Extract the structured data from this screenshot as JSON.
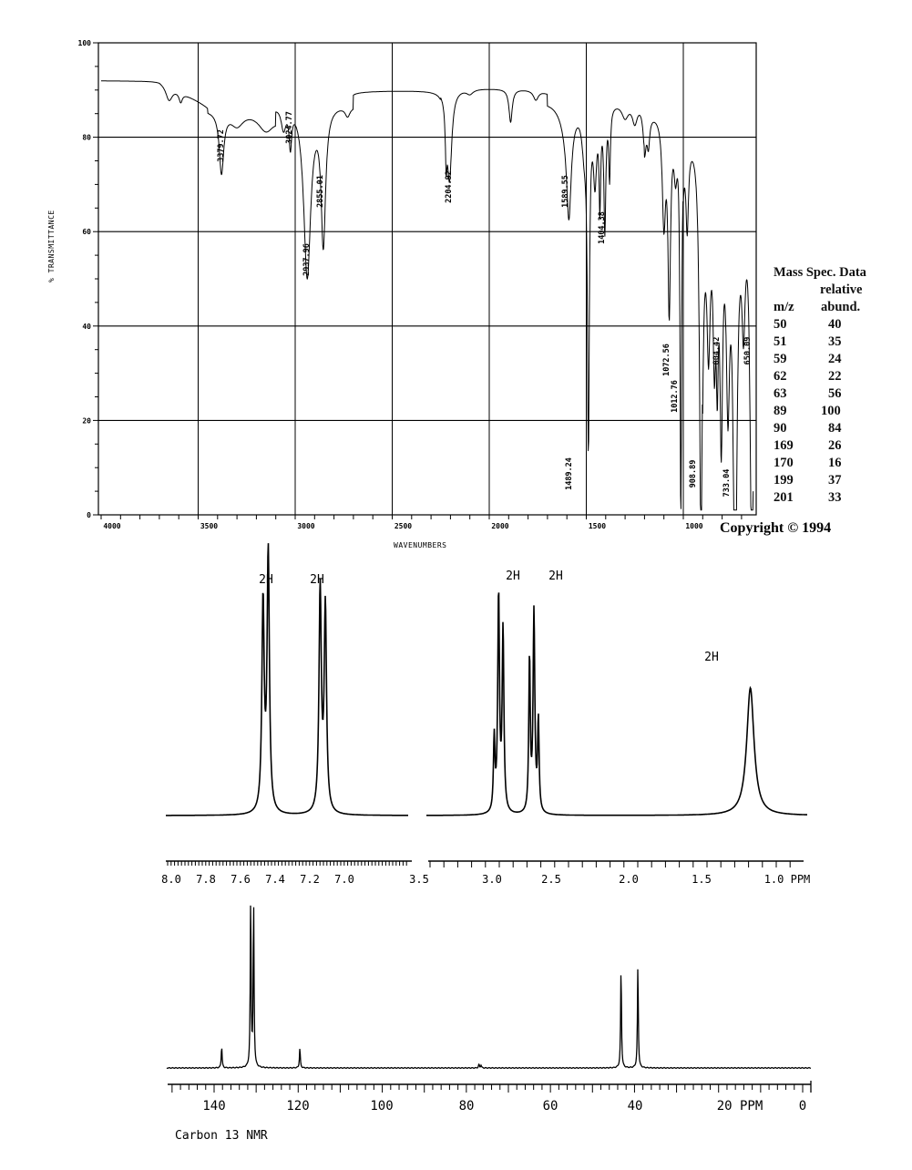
{
  "chart_data": [
    {
      "type": "line",
      "name": "IR spectrum",
      "title": "",
      "xlabel": "WAVENUMBERS",
      "ylabel": "% TRANSMITTANCE",
      "xlim": [
        4000,
        650
      ],
      "ylim": [
        0,
        100
      ],
      "x_ticks": [
        "4000",
        "3500",
        "3000",
        "2500",
        "2000",
        "1500",
        "1000"
      ],
      "y_ticks": [
        "0",
        "20",
        "40",
        "60",
        "80",
        "100"
      ],
      "grid": true,
      "peaks": [
        {
          "wavenumber": 3379.72,
          "transmittance": 78,
          "label": "3379.72"
        },
        {
          "wavenumber": 3024.77,
          "transmittance": 80,
          "label": "3024.77"
        },
        {
          "wavenumber": 2937.96,
          "transmittance": 55,
          "label": "2937.96"
        },
        {
          "wavenumber": 2855.01,
          "transmittance": 63,
          "label": "2855.01"
        },
        {
          "wavenumber": 2204.92,
          "transmittance": 72,
          "label": "2204.92"
        },
        {
          "wavenumber": 1589.55,
          "transmittance": 71,
          "label": "1589.55"
        },
        {
          "wavenumber": 1404.38,
          "transmittance": 62,
          "label": "1404.38"
        },
        {
          "wavenumber": 1489.24,
          "transmittance": 18,
          "label": "1489.24"
        },
        {
          "wavenumber": 1072.56,
          "transmittance": 44,
          "label": "1072.56"
        },
        {
          "wavenumber": 1012.76,
          "transmittance": 40,
          "label": "1012.76"
        },
        {
          "wavenumber": 908.89,
          "transmittance": 3,
          "label": "908.89"
        },
        {
          "wavenumber": 804.42,
          "transmittance": 37,
          "label": "804.42"
        },
        {
          "wavenumber": 733.04,
          "transmittance": 1,
          "label": "733.04"
        },
        {
          "wavenumber": 650.09,
          "transmittance": 40,
          "label": "650.09"
        }
      ]
    },
    {
      "type": "table",
      "name": "Mass Spec. Data",
      "title": "Mass Spec. Data",
      "columns": [
        "m/z",
        "relative abund."
      ],
      "rows": [
        [
          "50",
          "40"
        ],
        [
          "51",
          "35"
        ],
        [
          "59",
          "24"
        ],
        [
          "62",
          "22"
        ],
        [
          "63",
          "56"
        ],
        [
          "89",
          "100"
        ],
        [
          "90",
          "84"
        ],
        [
          "169",
          "26"
        ],
        [
          "170",
          "16"
        ],
        [
          "199",
          "37"
        ],
        [
          "201",
          "33"
        ]
      ]
    },
    {
      "type": "line",
      "name": "1H NMR spectrum",
      "xlabel": "PPM",
      "x_ticks_left": [
        "8.0",
        "7.8",
        "7.6",
        "7.4",
        "7.2",
        "7.0"
      ],
      "x_ticks_right": [
        "3.5",
        "3.0",
        "2.5",
        "2.0",
        "1.5",
        "1.0 PPM"
      ],
      "signals": [
        {
          "ppm": 7.45,
          "multiplicity": "doublet",
          "integration": "2H"
        },
        {
          "ppm": 7.12,
          "multiplicity": "doublet",
          "integration": "2H"
        },
        {
          "ppm": 2.95,
          "multiplicity": "triplet",
          "integration": "2H"
        },
        {
          "ppm": 2.72,
          "multiplicity": "triplet",
          "integration": "2H"
        },
        {
          "ppm": 1.25,
          "multiplicity": "broad singlet",
          "integration": "2H"
        }
      ]
    },
    {
      "type": "line",
      "name": "Carbon 13 NMR",
      "xlabel": "PPM",
      "xlim": [
        150,
        0
      ],
      "x_ticks": [
        "140",
        "120",
        "100",
        "80",
        "60",
        "40",
        "20 PPM",
        "0"
      ],
      "peaks_ppm": [
        138.2,
        131.5,
        130.8,
        119.6,
        77.0,
        43.2,
        39.2
      ]
    }
  ],
  "ir": {
    "y_axis_label": "% TRANSMITTANCE",
    "x_axis_label": "WAVENUMBERS",
    "y_ticks": [
      "100",
      "80",
      "60",
      "40",
      "20",
      "0"
    ],
    "x_ticks": [
      "4000",
      "3500",
      "3000",
      "2500",
      "2000",
      "1500",
      "1000"
    ]
  },
  "mass_spec": {
    "title": "Mass Spec. Data",
    "subtitle": "relative",
    "col_mz": "m/z",
    "col_abund": "abund.",
    "rows": [
      {
        "mz": "50",
        "abund": "40"
      },
      {
        "mz": "51",
        "abund": "35"
      },
      {
        "mz": "59",
        "abund": "24"
      },
      {
        "mz": "62",
        "abund": "22"
      },
      {
        "mz": "63",
        "abund": "56"
      },
      {
        "mz": "89",
        "abund": "100"
      },
      {
        "mz": "90",
        "abund": "84"
      },
      {
        "mz": "169",
        "abund": "26"
      },
      {
        "mz": "170",
        "abund": "16"
      },
      {
        "mz": "199",
        "abund": "37"
      },
      {
        "mz": "201",
        "abund": "33"
      }
    ]
  },
  "copyright": "Copyright  ©  1994",
  "h_nmr": {
    "integrations": [
      "2H",
      "2H",
      "2H",
      "2H",
      "2H"
    ],
    "left_ticks": [
      "8.0",
      "7.8",
      "7.6",
      "7.4",
      "7.2",
      "7.0"
    ],
    "right_ticks": [
      "3.5",
      "3.0",
      "2.5",
      "2.0",
      "1.5",
      "1.0 PPM"
    ]
  },
  "c_nmr": {
    "label": "Carbon 13 NMR",
    "ticks": [
      "140",
      "120",
      "100",
      "80",
      "60",
      "40",
      "20 PPM",
      "0"
    ]
  }
}
